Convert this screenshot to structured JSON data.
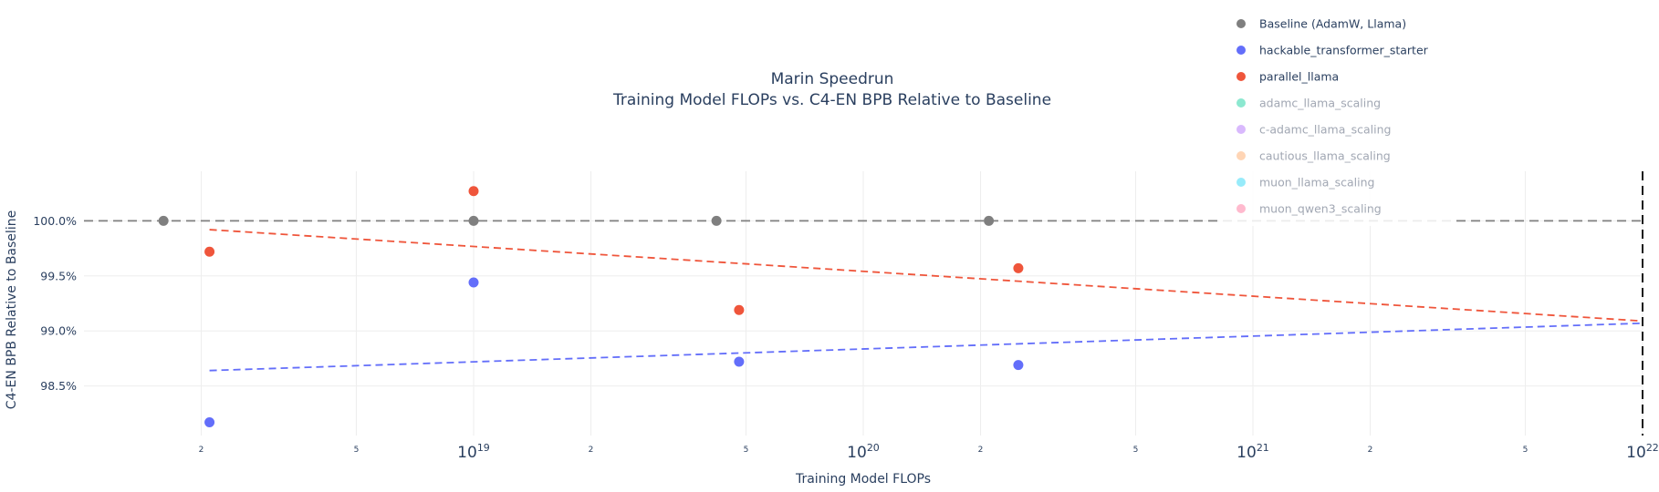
{
  "chart_data": {
    "type": "scatter",
    "title": "Marin Speedrun",
    "subtitle": "Training Model FLOPs vs. C4-EN BPB Relative to Baseline",
    "xlabel": "Training Model FLOPs",
    "ylabel": "C4-EN BPB Relative to Baseline",
    "x_scale": "log",
    "xlim": [
      1e+18,
      1e+22
    ],
    "ylim": [
      98.05,
      100.45
    ],
    "grid": true,
    "legend_position": "top-right",
    "y_ticks": [
      {
        "value": 98.5,
        "label": "98.5%"
      },
      {
        "value": 99.0,
        "label": "99.0%"
      },
      {
        "value": 99.5,
        "label": "99.5%"
      },
      {
        "value": 100.0,
        "label": "100.0%"
      }
    ],
    "x_major_ticks": [
      {
        "value": 1e+19,
        "base": "10",
        "exp": "19"
      },
      {
        "value": 1e+20,
        "base": "10",
        "exp": "20"
      },
      {
        "value": 1e+21,
        "base": "10",
        "exp": "21"
      },
      {
        "value": 1e+22,
        "base": "10",
        "exp": "22"
      }
    ],
    "x_minor_ticks": [
      {
        "value": 2e+18,
        "label": "2"
      },
      {
        "value": 5e+18,
        "label": "5"
      },
      {
        "value": 2e+19,
        "label": "2"
      },
      {
        "value": 5e+19,
        "label": "5"
      },
      {
        "value": 2e+20,
        "label": "2"
      },
      {
        "value": 5e+20,
        "label": "5"
      },
      {
        "value": 2e+21,
        "label": "2"
      },
      {
        "value": 5e+21,
        "label": "5"
      }
    ],
    "reference_lines": [
      {
        "type": "horizontal",
        "y": 100.0,
        "color": "#7f7f7f"
      },
      {
        "type": "vertical",
        "x": 1e+22,
        "color": "#000000"
      }
    ],
    "series": [
      {
        "name": "Baseline (AdamW, Llama)",
        "color": "#7f7f7f",
        "visible": true,
        "points": [
          {
            "x": 1.6e+18,
            "y": 100.0
          },
          {
            "x": 1e+19,
            "y": 100.0
          },
          {
            "x": 4.2e+19,
            "y": 100.0
          },
          {
            "x": 2.1e+20,
            "y": 100.0
          }
        ]
      },
      {
        "name": "hackable_transformer_starter",
        "color": "#636efa",
        "visible": true,
        "points": [
          {
            "x": 2.1e+18,
            "y": 98.17
          },
          {
            "x": 1e+19,
            "y": 99.44
          },
          {
            "x": 4.8e+19,
            "y": 98.72
          },
          {
            "x": 2.5e+20,
            "y": 98.69
          }
        ],
        "trend": [
          {
            "x": 2.1e+18,
            "y": 98.64
          },
          {
            "x": 1e+22,
            "y": 99.07
          }
        ]
      },
      {
        "name": "parallel_llama",
        "color": "#ef553b",
        "visible": true,
        "points": [
          {
            "x": 2.1e+18,
            "y": 99.72
          },
          {
            "x": 1e+19,
            "y": 100.27
          },
          {
            "x": 4.8e+19,
            "y": 99.19
          },
          {
            "x": 2.5e+20,
            "y": 99.57
          }
        ],
        "trend": [
          {
            "x": 2.1e+18,
            "y": 99.92
          },
          {
            "x": 1e+22,
            "y": 99.09
          }
        ]
      },
      {
        "name": "adamc_llama_scaling",
        "color": "#00cc96",
        "visible": false,
        "points": []
      },
      {
        "name": "c-adamc_llama_scaling",
        "color": "#ab63fa",
        "visible": false,
        "points": []
      },
      {
        "name": "cautious_llama_scaling",
        "color": "#ffa15a",
        "visible": false,
        "points": []
      },
      {
        "name": "muon_llama_scaling",
        "color": "#19d3f3",
        "visible": false,
        "points": []
      },
      {
        "name": "muon_qwen3_scaling",
        "color": "#ff6692",
        "visible": false,
        "points": []
      }
    ]
  }
}
